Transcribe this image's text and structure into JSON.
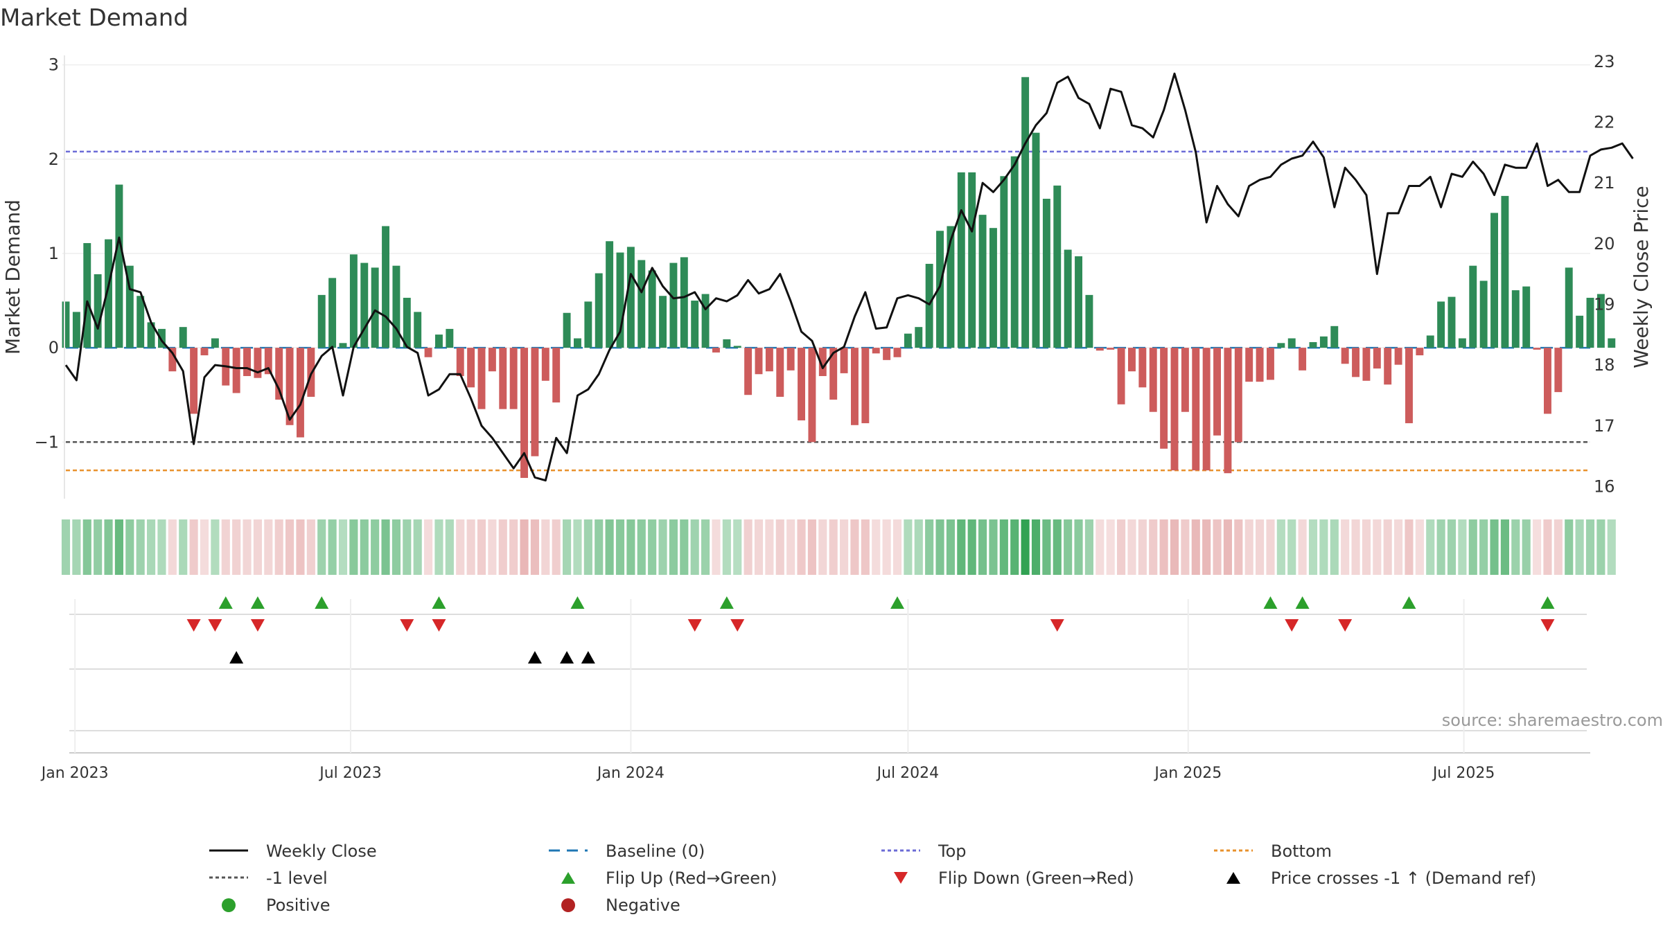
{
  "title": "Market Demand",
  "source": "source: sharemaestro.com",
  "colors": {
    "pos": "#2e8b57",
    "neg": "#cd5c5c",
    "close": "#111111",
    "top": "#6b6bd6",
    "bottom": "#e8912c",
    "level": "#555555",
    "baseline": "#1f77b4",
    "flipUp": "#2ca02c",
    "flipDown": "#d62728"
  },
  "chart_data": {
    "type": "bar+line",
    "title": "Market Demand",
    "ylabel": "Market Demand",
    "ylabel_right": "Weekly Close Price",
    "ylim": [
      -1.6,
      3.1
    ],
    "ylim_right": [
      15.8,
      23.1
    ],
    "yticks": [
      -1,
      0,
      1,
      2,
      3
    ],
    "ytick_labels": [
      "−1",
      "0",
      "1",
      "2",
      "3"
    ],
    "yticks_right": [
      16,
      17,
      18,
      19,
      20,
      21,
      22,
      23
    ],
    "top_level": 2.08,
    "bottom_level": -1.3,
    "minus1_level": -1,
    "x_start": "2022-12-26",
    "x_step_days": 7,
    "x_end": "2025-09-22",
    "xticks": [
      {
        "date": "2023-01-01",
        "label": "Jan 2023"
      },
      {
        "date": "2023-07-01",
        "label": "Jul 2023"
      },
      {
        "date": "2024-01-01",
        "label": "Jan 2024"
      },
      {
        "date": "2024-07-01",
        "label": "Jul 2024"
      },
      {
        "date": "2025-01-01",
        "label": "Jan 2025"
      },
      {
        "date": "2025-07-01",
        "label": "Jul 2025"
      }
    ],
    "series": [
      {
        "name": "Market Demand",
        "values": [
          0.49,
          0.38,
          1.11,
          0.78,
          1.15,
          1.73,
          0.87,
          0.55,
          0.27,
          0.2,
          -0.25,
          0.22,
          -0.7,
          -0.08,
          0.1,
          -0.4,
          -0.48,
          -0.3,
          -0.32,
          -0.28,
          -0.55,
          -0.82,
          -0.95,
          -0.52,
          0.56,
          0.74,
          0.05,
          0.99,
          0.9,
          0.85,
          1.29,
          0.87,
          0.53,
          0.38,
          -0.1,
          0.14,
          0.2,
          -0.3,
          -0.42,
          -0.65,
          -0.25,
          -0.65,
          -0.65,
          -1.38,
          -1.15,
          -0.35,
          -0.58,
          0.37,
          0.1,
          0.49,
          0.79,
          1.13,
          1.01,
          1.07,
          0.93,
          0.82,
          0.55,
          0.9,
          0.96,
          0.5,
          0.57,
          -0.05,
          0.09,
          0.02,
          -0.5,
          -0.28,
          -0.25,
          -0.52,
          -0.24,
          -0.77,
          -1.0,
          -0.3,
          -0.55,
          -0.27,
          -0.82,
          -0.8,
          -0.06,
          -0.13,
          -0.1,
          0.15,
          0.22,
          0.89,
          1.24,
          1.29,
          1.86,
          1.86,
          1.41,
          1.27,
          1.82,
          2.03,
          2.87,
          2.28,
          1.58,
          1.72,
          1.04,
          0.97,
          0.56,
          -0.03,
          -0.02,
          -0.6,
          -0.25,
          -0.42,
          -0.68,
          -1.07,
          -1.3,
          -0.68,
          -1.3,
          -1.3,
          -0.93,
          -1.33,
          -1.0,
          -0.36,
          -0.36,
          -0.34,
          0.05,
          0.1,
          -0.24,
          0.06,
          0.12,
          0.23,
          -0.17,
          -0.31,
          -0.35,
          -0.22,
          -0.39,
          -0.18,
          -0.8,
          -0.08,
          0.13,
          0.49,
          0.54,
          0.1,
          0.87,
          0.71,
          1.43,
          1.61,
          0.61,
          0.65,
          -0.02,
          -0.7,
          -0.47,
          0.85,
          0.34,
          0.53,
          0.57,
          0.1
        ]
      },
      {
        "name": "Weekly Close",
        "values": [
          18.0,
          17.75,
          19.05,
          18.6,
          19.3,
          20.1,
          19.25,
          19.2,
          18.7,
          18.4,
          18.2,
          17.9,
          16.7,
          17.8,
          18.0,
          17.98,
          17.95,
          17.95,
          17.88,
          17.95,
          17.6,
          17.1,
          17.35,
          17.85,
          18.15,
          18.3,
          17.5,
          18.3,
          18.6,
          18.9,
          18.8,
          18.6,
          18.3,
          18.2,
          17.5,
          17.6,
          17.85,
          17.85,
          17.45,
          17.0,
          16.8,
          16.55,
          16.3,
          16.55,
          16.15,
          16.1,
          16.8,
          16.55,
          17.5,
          17.6,
          17.85,
          18.25,
          18.55,
          19.5,
          19.2,
          19.6,
          19.3,
          19.1,
          19.12,
          19.2,
          18.92,
          19.1,
          19.05,
          19.15,
          19.4,
          19.18,
          19.25,
          19.5,
          19.05,
          18.55,
          18.4,
          17.95,
          18.2,
          18.3,
          18.8,
          19.2,
          18.6,
          18.62,
          19.1,
          19.15,
          19.1,
          19.0,
          19.3,
          20.05,
          20.55,
          20.2,
          21.0,
          20.85,
          21.05,
          21.3,
          21.65,
          21.95,
          22.15,
          22.65,
          22.75,
          22.4,
          22.3,
          21.9,
          22.55,
          22.5,
          21.95,
          21.9,
          21.75,
          22.2,
          22.8,
          22.2,
          21.5,
          20.35,
          20.95,
          20.65,
          20.45,
          20.95,
          21.05,
          21.1,
          21.3,
          21.4,
          21.45,
          21.68,
          21.42,
          20.6,
          21.25,
          21.05,
          20.8,
          19.5,
          20.5,
          20.5,
          20.95,
          20.95,
          21.1,
          20.6,
          21.15,
          21.1,
          21.35,
          21.15,
          20.8,
          21.3,
          21.25,
          21.25,
          21.65,
          20.95,
          21.05,
          20.85,
          20.85,
          21.45,
          21.55,
          21.58,
          21.65,
          21.4
        ]
      }
    ],
    "annotations": [
      {
        "type": "flip_up",
        "dates": [
          "2023-04-10",
          "2023-05-01",
          "2023-06-12",
          "2023-08-28",
          "2023-11-27",
          "2024-03-04",
          "2024-06-24",
          "2025-02-24",
          "2025-03-17",
          "2025-05-26",
          "2025-08-25"
        ]
      },
      {
        "type": "flip_down",
        "dates": [
          "2023-03-20",
          "2023-04-03",
          "2023-05-01",
          "2023-08-07",
          "2023-08-28",
          "2024-02-12",
          "2024-03-11",
          "2024-10-07",
          "2025-03-10",
          "2025-04-14",
          "2025-08-25"
        ]
      },
      {
        "type": "price_cross_minus1",
        "dates": [
          "2023-04-17",
          "2023-10-30",
          "2023-11-20",
          "2023-12-04"
        ]
      }
    ],
    "legend": {
      "position": "bottom",
      "items": [
        {
          "label": "Weekly Close",
          "symbol": "line-solid"
        },
        {
          "label": "Baseline (0)",
          "symbol": "line-dashed-blue"
        },
        {
          "label": "Top",
          "symbol": "line-dotted-purple"
        },
        {
          "label": "Bottom",
          "symbol": "line-dotted-orange"
        },
        {
          "label": "-1 level",
          "symbol": "line-dotted-gray"
        },
        {
          "label": "Flip Up (Red→Green)",
          "symbol": "triangle-up-green"
        },
        {
          "label": "Flip Down (Green→Red)",
          "symbol": "triangle-down-red"
        },
        {
          "label": "Price crosses -1 ↑ (Demand ref)",
          "symbol": "triangle-up-black"
        },
        {
          "label": "Positive",
          "symbol": "dot-green"
        },
        {
          "label": "Negative",
          "symbol": "dot-red"
        }
      ]
    }
  }
}
